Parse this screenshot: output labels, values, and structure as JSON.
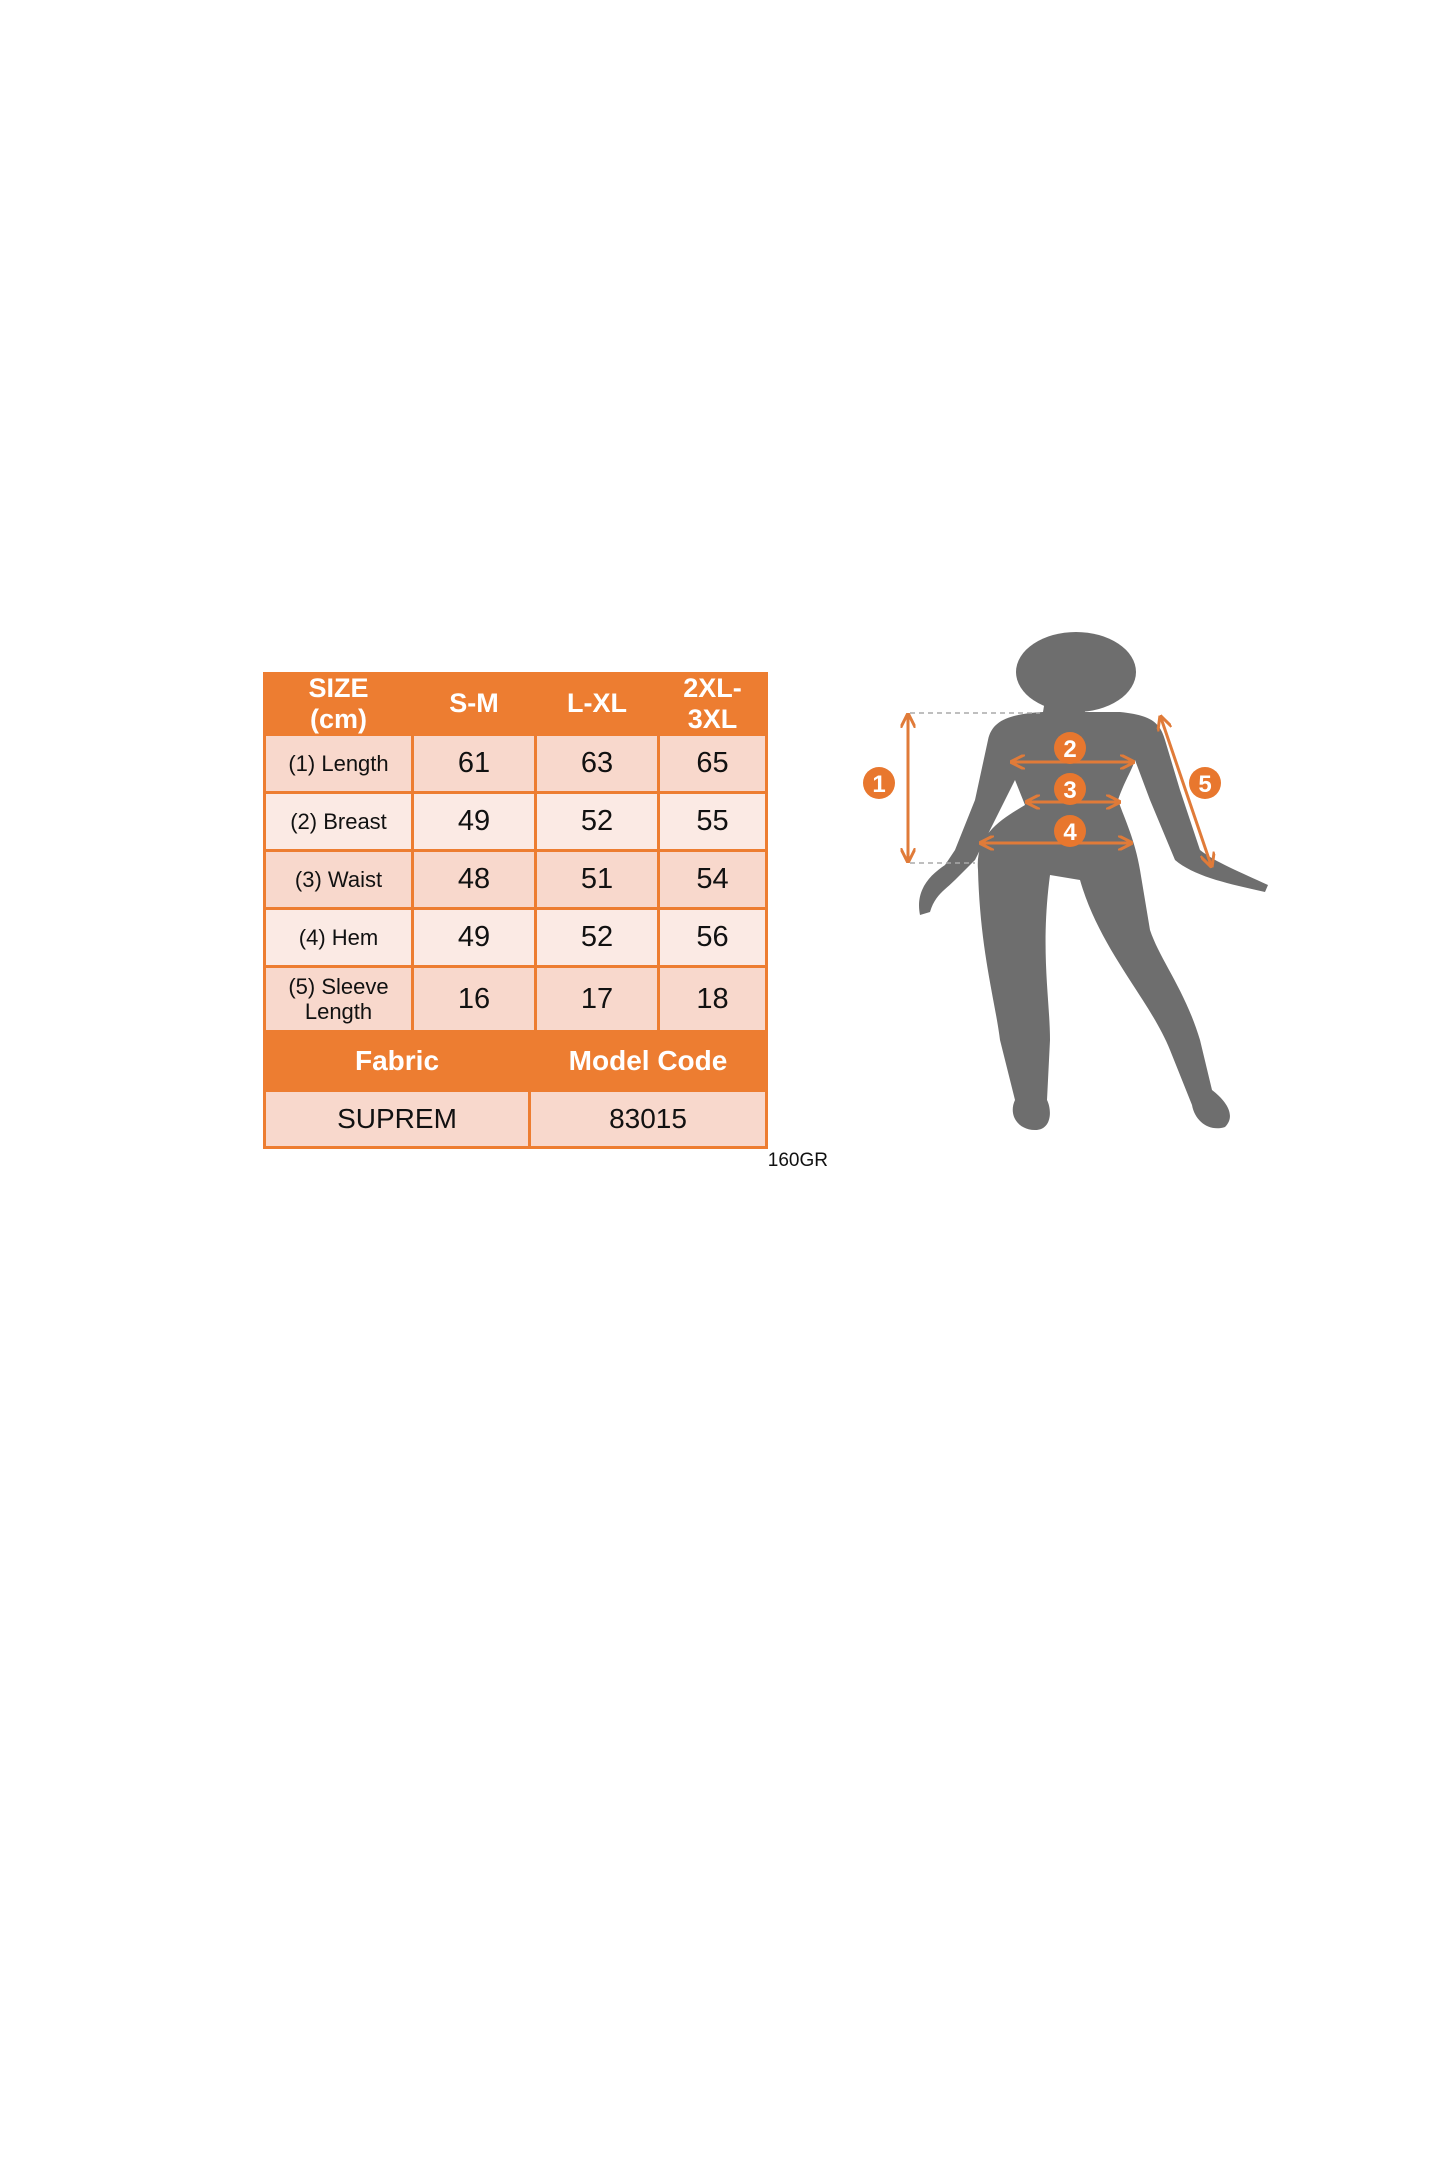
{
  "size_table": {
    "header": [
      "SIZE (cm)",
      "S-M",
      "L-XL",
      "2XL-3XL"
    ],
    "header_lines": {
      "size": [
        "SIZE",
        "(cm)"
      ],
      "xl": [
        "2XL-",
        "3XL"
      ]
    },
    "rows": [
      {
        "label": "(1) Length",
        "values": [
          "61",
          "63",
          "65"
        ]
      },
      {
        "label": "(2) Breast",
        "values": [
          "49",
          "52",
          "55"
        ]
      },
      {
        "label": "(3) Waist",
        "values": [
          "48",
          "51",
          "54"
        ]
      },
      {
        "label": "(4) Hem",
        "values": [
          "49",
          "52",
          "56"
        ]
      },
      {
        "label": "(5) Sleeve Length",
        "label_lines": [
          "(5) Sleeve",
          "Length"
        ],
        "values": [
          "16",
          "17",
          "18"
        ]
      }
    ],
    "fabric_label": "Fabric",
    "model_code_label": "Model Code",
    "fabric_value": "SUPREM",
    "model_code_value": "83015"
  },
  "weight_note": "160GR",
  "figure": {
    "markers": [
      "1",
      "2",
      "3",
      "4",
      "5"
    ],
    "silhouette_color": "#6E6E6E"
  },
  "colors": {
    "accent": "#ED7D31",
    "row_dark": "#F8D8CC",
    "row_light": "#FBEAE4"
  }
}
